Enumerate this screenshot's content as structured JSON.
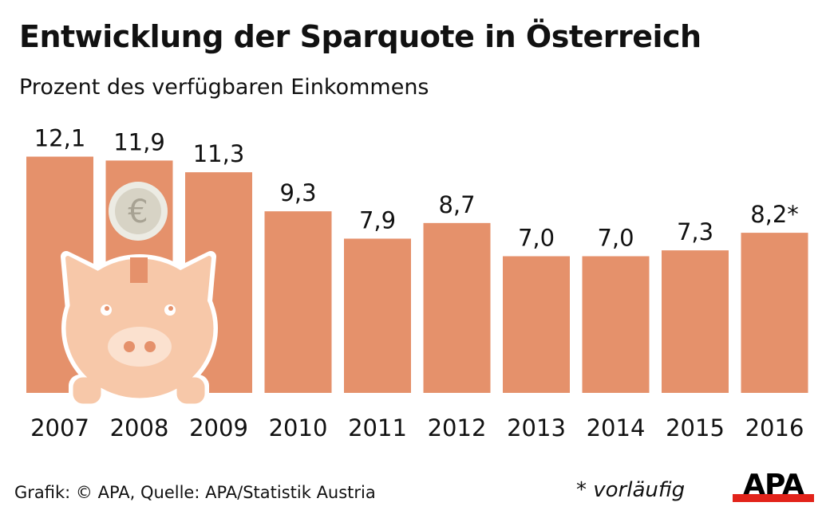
{
  "title": "Entwicklung der Sparquote in Österreich",
  "subtitle": "Prozent des verfügbaren Einkommens",
  "source": "Grafik: © APA, Quelle: APA/Statistik Austria",
  "note": "* vorläufig",
  "logo_text": "APA",
  "colors": {
    "bar": "#e5916b",
    "pig": "#f7c8a9",
    "snout": "#fbe1cf",
    "coin": "#ecebe3",
    "coin_inner": "#d7d3c5",
    "logo_red": "#e2231a"
  },
  "chart_data": {
    "type": "bar",
    "title": "Entwicklung der Sparquote in Österreich",
    "subtitle": "Prozent des verfügbaren Einkommens",
    "categories": [
      "2007",
      "2008",
      "2009",
      "2010",
      "2011",
      "2012",
      "2013",
      "2014",
      "2015",
      "2016"
    ],
    "values": [
      12.1,
      11.9,
      11.3,
      9.3,
      7.9,
      8.7,
      7.0,
      7.0,
      7.3,
      8.2
    ],
    "labels": [
      "12,1",
      "11,9",
      "11,3",
      "9,3",
      "7,9",
      "8,7",
      "7,0",
      "7,0",
      "7,3",
      "8,2*"
    ],
    "ylim": [
      0,
      12.1
    ],
    "grid": false,
    "decoration": "piggy-bank-with-euro-coin"
  }
}
